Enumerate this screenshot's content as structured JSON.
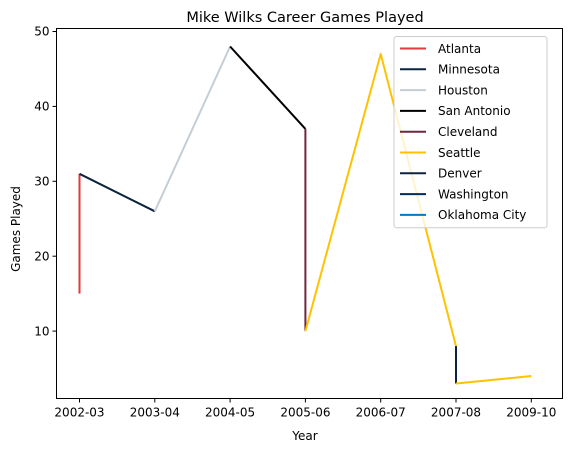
{
  "chart_data": {
    "type": "line",
    "title": "Mike Wilks  Career Games Played",
    "xlabel": "Year",
    "ylabel": "Games Played",
    "categories": [
      "2002-03",
      "2003-04",
      "2004-05",
      "2005-06",
      "2006-07",
      "2007-08",
      "2009-10"
    ],
    "ylim": [
      1,
      50.4
    ],
    "yticks": [
      10,
      20,
      30,
      40,
      50
    ],
    "grid": false,
    "legend_position": "upper-right",
    "series": [
      {
        "name": "Atlanta",
        "color": "#e03a3e",
        "points": [
          [
            "2002-03",
            15
          ],
          [
            "2002-03",
            31
          ]
        ]
      },
      {
        "name": "Minnesota",
        "color": "#0c2340",
        "points": [
          [
            "2002-03",
            31
          ],
          [
            "2003-04",
            26
          ]
        ]
      },
      {
        "name": "Houston",
        "color": "#c4ced4",
        "points": [
          [
            "2003-04",
            26
          ],
          [
            "2004-05",
            48
          ]
        ]
      },
      {
        "name": "San Antonio",
        "color": "#000000",
        "points": [
          [
            "2004-05",
            48
          ],
          [
            "2005-06",
            37
          ]
        ]
      },
      {
        "name": "Cleveland",
        "color": "#6f263d",
        "points": [
          [
            "2005-06",
            37
          ],
          [
            "2005-06",
            10
          ]
        ]
      },
      {
        "name": "Seattle",
        "color": "#ffc200",
        "points": [
          [
            "2005-06",
            10
          ],
          [
            "2006-07",
            47
          ],
          [
            "2007-08",
            8
          ]
        ]
      },
      {
        "name": "Denver",
        "color": "#0e2240",
        "points": [
          [
            "2007-08",
            8
          ],
          [
            "2007-08",
            3
          ]
        ]
      },
      {
        "name": "Washington",
        "color": "#002b5c",
        "points": [
          [
            "2007-08",
            3
          ]
        ]
      },
      {
        "name": "Oklahoma City",
        "color": "#007ac1",
        "points": []
      },
      {
        "name": "Seattle",
        "color": "#ffc200",
        "legend": false,
        "points": [
          [
            "2007-08",
            3
          ],
          [
            "2009-10",
            4
          ]
        ]
      }
    ]
  }
}
